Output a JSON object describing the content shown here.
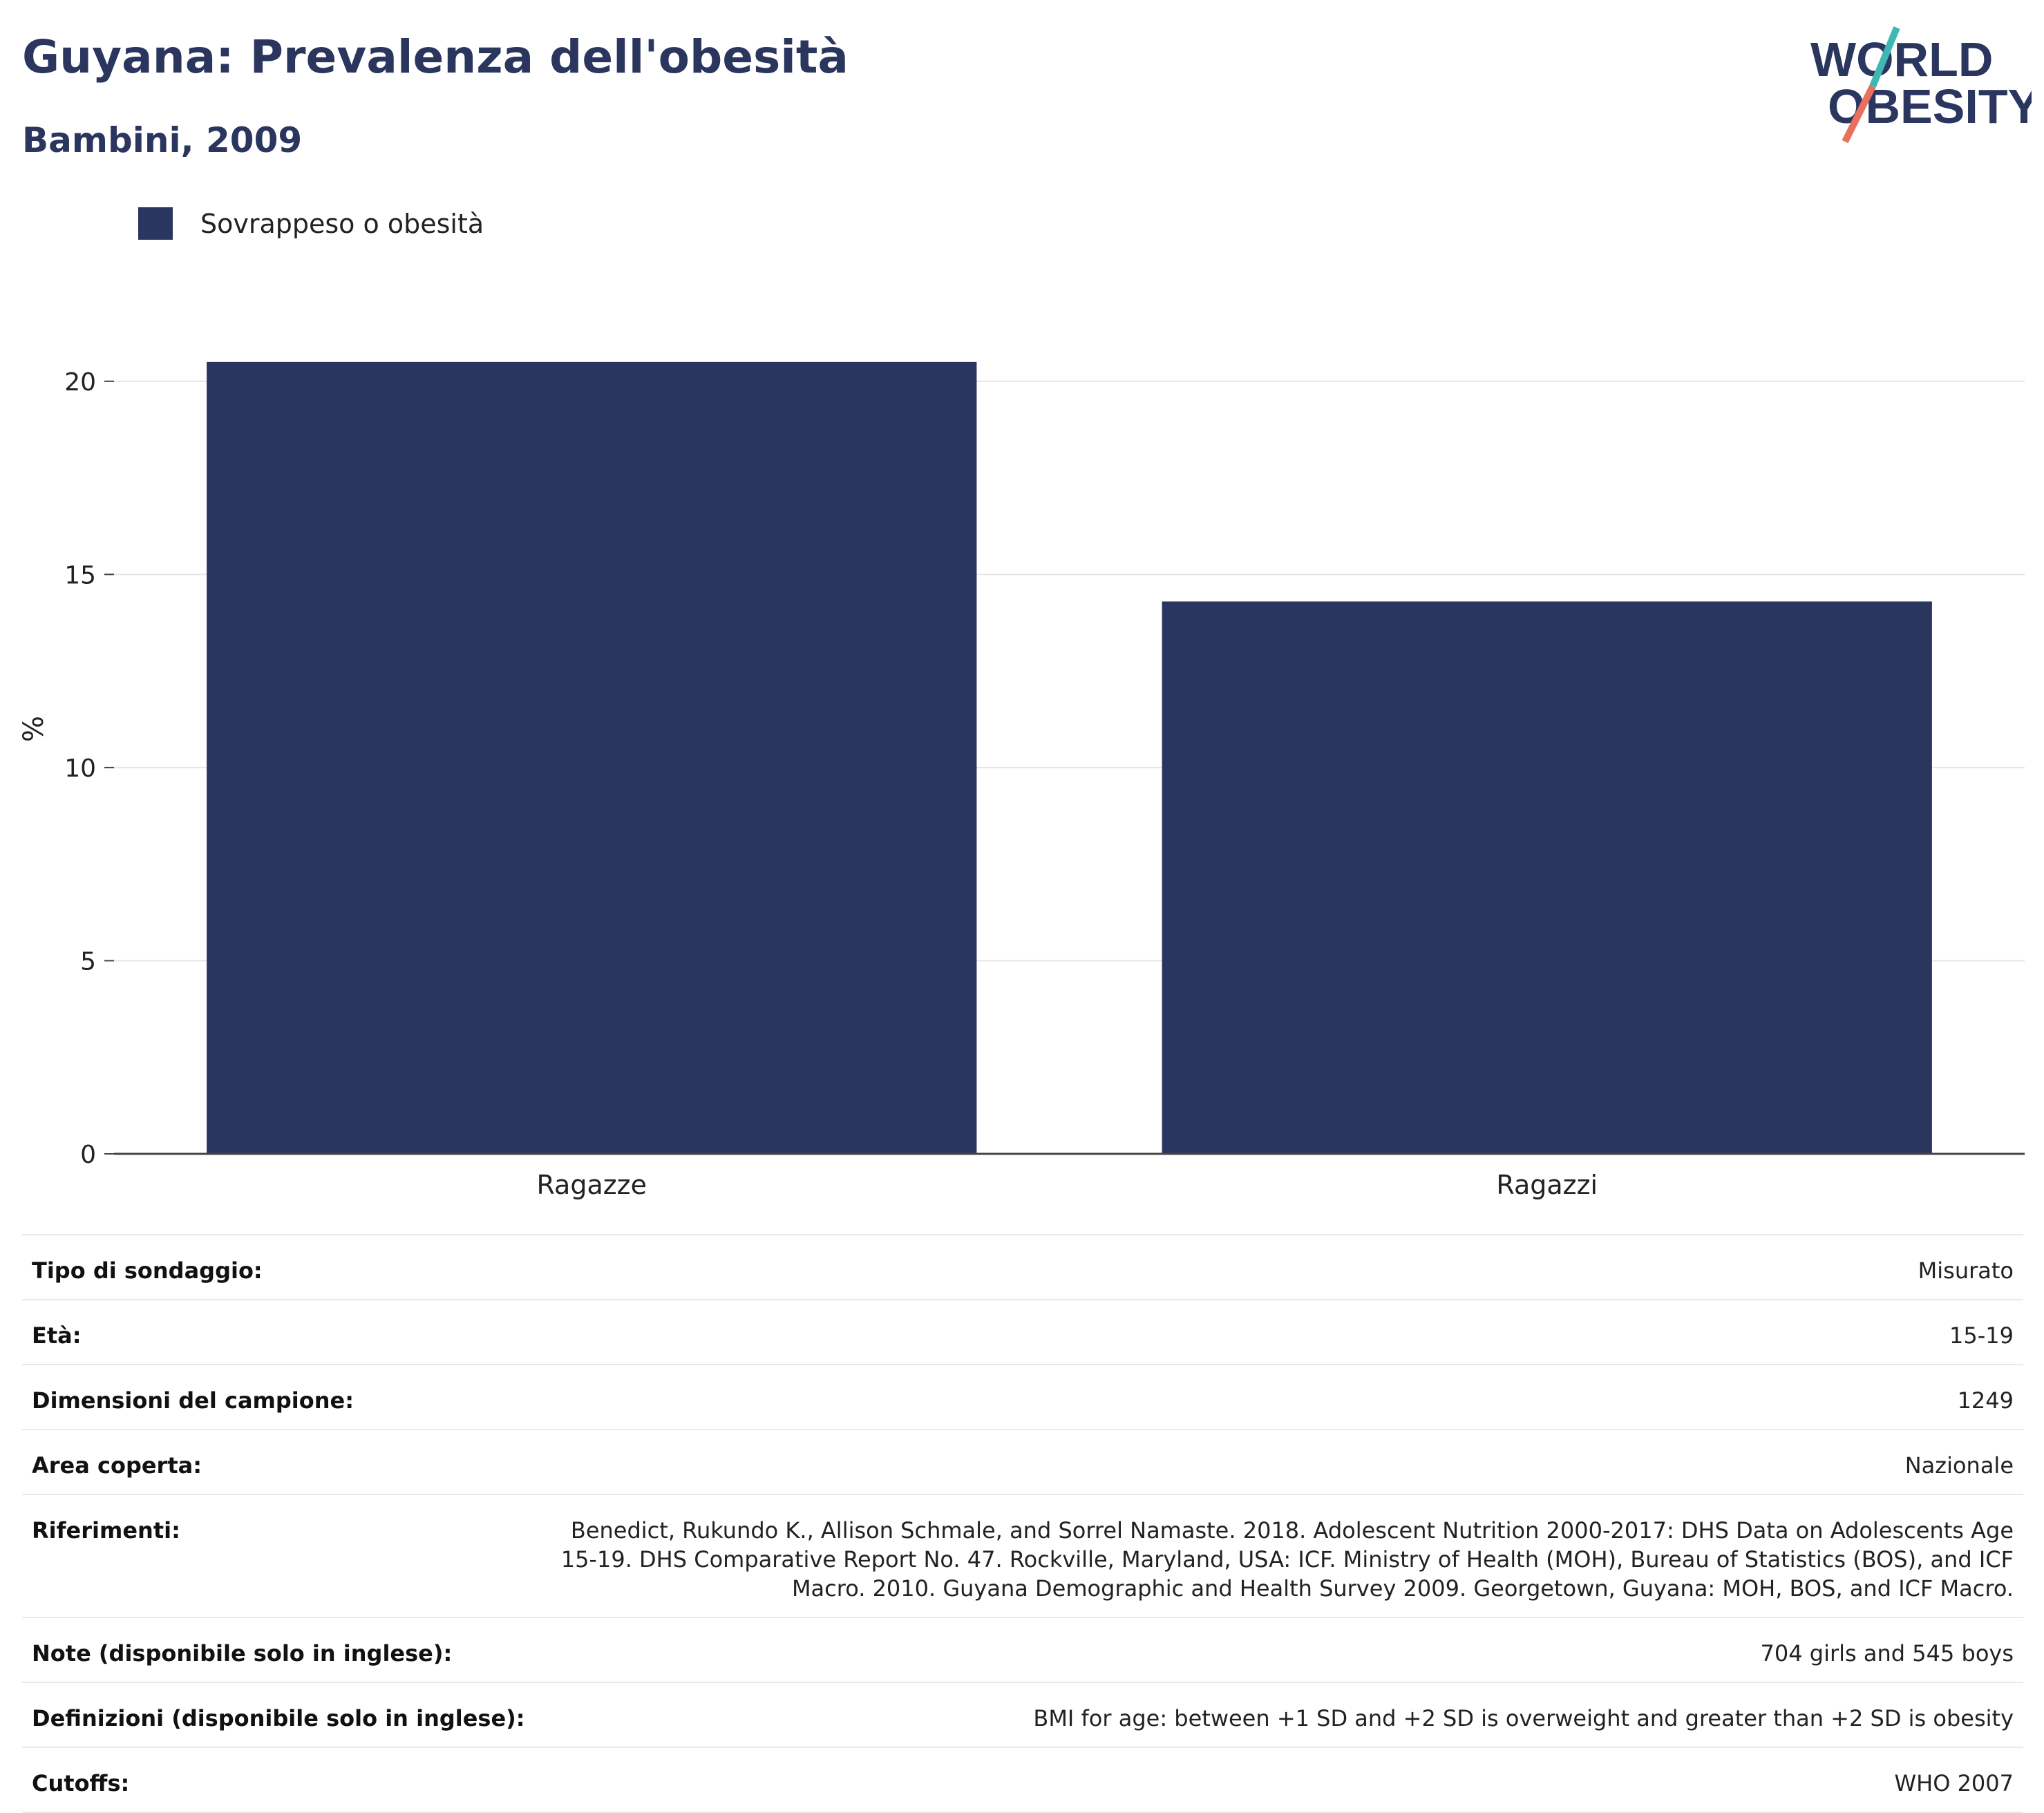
{
  "header": {
    "title": "Guyana: Prevalenza dell'obesità",
    "subtitle": "Bambini, 2009"
  },
  "logo": {
    "line1": "WORLD",
    "line2": "OBESITY"
  },
  "colors": {
    "bar": "#2b365f",
    "grid": "#e6e6e6",
    "axis": "#444444",
    "logo_teal": "#3fb8b5",
    "logo_coral": "#e8715e"
  },
  "chart_data": {
    "type": "bar",
    "categories": [
      "Ragazze",
      "Ragazzi"
    ],
    "series": [
      {
        "name": "Sovrappeso o obesità",
        "values": [
          20.5,
          14.3
        ]
      }
    ],
    "ylabel": "%",
    "ylim": [
      0,
      22
    ],
    "yticks": [
      0,
      5,
      10,
      15,
      20
    ],
    "grid": true,
    "legend": "top-left"
  },
  "info": {
    "rows": [
      {
        "label": "Tipo di sondaggio:",
        "value": "Misurato"
      },
      {
        "label": "Età:",
        "value": "15-19"
      },
      {
        "label": "Dimensioni del campione:",
        "value": "1249"
      },
      {
        "label": "Area coperta:",
        "value": "Nazionale"
      },
      {
        "label": "Riferimenti:",
        "value": "Benedict, Rukundo K., Allison Schmale, and Sorrel Namaste. 2018. Adolescent Nutrition 2000-2017: DHS Data on Adolescents Age 15-19. DHS Comparative Report No. 47. Rockville, Maryland, USA: ICF. Ministry of Health (MOH), Bureau of Statistics (BOS), and ICF Macro. 2010. Guyana Demographic and Health Survey 2009. Georgetown, Guyana: MOH, BOS, and ICF Macro."
      },
      {
        "label": "Note (disponibile solo in inglese):",
        "value": "704 girls and 545 boys"
      },
      {
        "label": "Definizioni (disponibile solo in inglese):",
        "value": "BMI for age: between +1 SD and +2 SD is overweight and greater than +2 SD is obesity"
      },
      {
        "label": "Cutoffs:",
        "value": "WHO 2007"
      }
    ]
  }
}
